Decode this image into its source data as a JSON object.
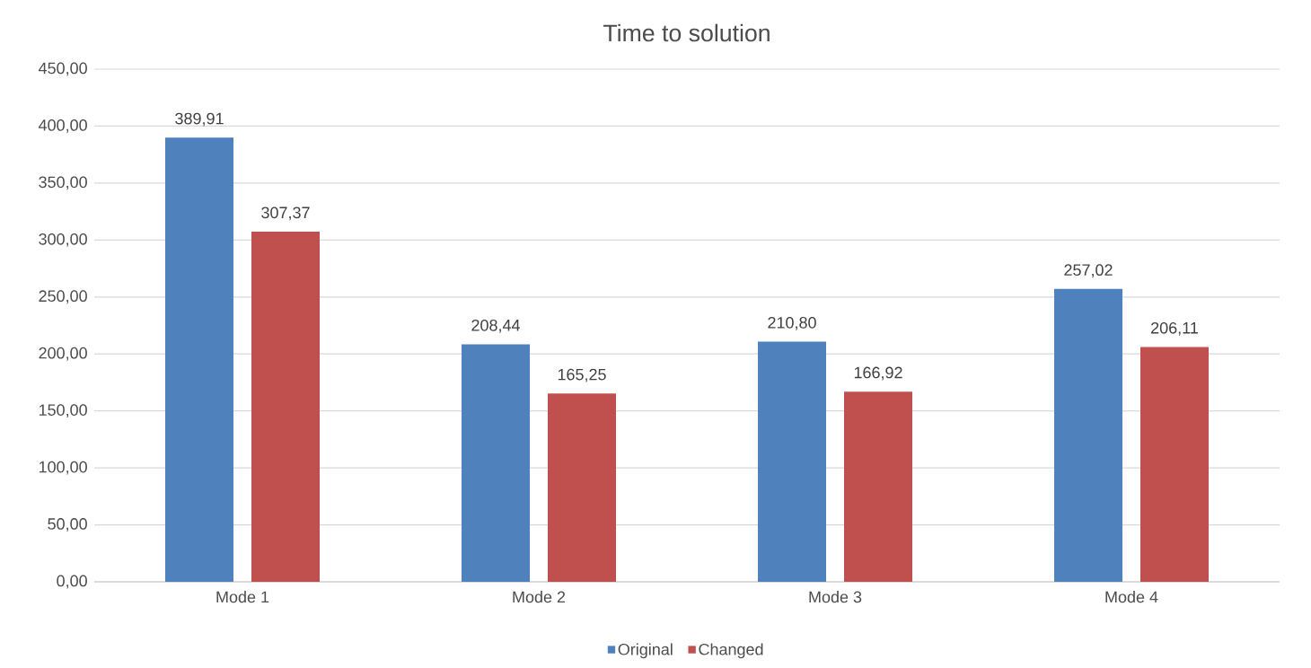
{
  "chart_data": {
    "type": "bar",
    "title": "Time to solution",
    "categories": [
      "Mode 1",
      "Mode 2",
      "Mode 3",
      "Mode 4"
    ],
    "series": [
      {
        "name": "Original",
        "color": "#4f81bd",
        "values": [
          389.91,
          208.44,
          210.8,
          257.02
        ],
        "value_labels": [
          "389,91",
          "208,44",
          "210,80",
          "257,02"
        ]
      },
      {
        "name": "Changed",
        "color": "#c0504d",
        "values": [
          307.37,
          165.25,
          166.92,
          206.11
        ],
        "value_labels": [
          "307,37",
          "165,25",
          "166,92",
          "206,11"
        ]
      }
    ],
    "ylim": [
      0,
      450
    ],
    "yticks": [
      {
        "value": 0,
        "label": "0,00"
      },
      {
        "value": 50,
        "label": "50,00"
      },
      {
        "value": 100,
        "label": "100,00"
      },
      {
        "value": 150,
        "label": "150,00"
      },
      {
        "value": 200,
        "label": "200,00"
      },
      {
        "value": 250,
        "label": "250,00"
      },
      {
        "value": 300,
        "label": "300,00"
      },
      {
        "value": 350,
        "label": "350,00"
      },
      {
        "value": 400,
        "label": "400,00"
      },
      {
        "value": 450,
        "label": "450,00"
      }
    ],
    "grid": "y",
    "legend": "bottom"
  }
}
